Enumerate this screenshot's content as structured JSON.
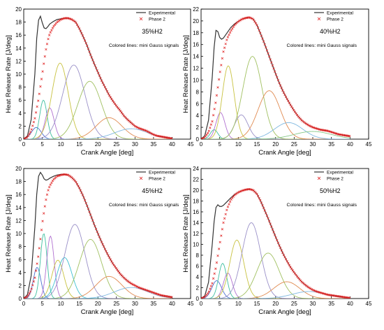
{
  "chart_data": [
    {
      "type": "line",
      "panel_label": "35%H2",
      "annotation": "Colored lines: mini Gauss signals",
      "xlabel": "Crank Angle [deg]",
      "ylabel": "Heat Release Rate [J/deg]",
      "xlim": [
        0,
        45
      ],
      "ylim": [
        0,
        20
      ],
      "xticks": [
        0,
        5,
        10,
        15,
        20,
        25,
        30,
        35,
        40,
        45
      ],
      "yticks": [
        0,
        2,
        4,
        6,
        8,
        10,
        12,
        14,
        16,
        18,
        20
      ],
      "legend": {
        "position": "top-right",
        "entries": [
          "Experimental",
          "Phase 2"
        ]
      },
      "experimental": {
        "name": "Experimental",
        "x": [
          0,
          1,
          2,
          3,
          3.5,
          4,
          4.5,
          5,
          5.5,
          6,
          6.5,
          7,
          8,
          9,
          10,
          11,
          12,
          13,
          14,
          15,
          16,
          17,
          18,
          19,
          20,
          21,
          22,
          23,
          24,
          25,
          26,
          27,
          28,
          29,
          30,
          31,
          32,
          33,
          34,
          35,
          36,
          37,
          38,
          39,
          40
        ],
        "y": [
          0,
          0.5,
          3,
          10,
          15.5,
          18.3,
          18.9,
          17.9,
          17.1,
          17.0,
          17.3,
          17.7,
          18.1,
          18.4,
          18.5,
          18.6,
          18.6,
          18.4,
          18.0,
          17.0,
          15.8,
          14.5,
          13.0,
          11.6,
          10.3,
          9.0,
          7.9,
          6.8,
          5.9,
          5.1,
          4.4,
          3.6,
          3.0,
          2.5,
          2.0,
          1.7,
          1.5,
          1.3,
          1.0,
          0.7,
          0.5,
          0.4,
          0.3,
          0.2,
          0.1
        ]
      },
      "phase2": {
        "name": "Phase 2",
        "x": [
          0,
          1,
          2,
          3,
          4,
          5,
          5.5,
          6,
          6.5,
          7,
          8,
          9,
          10,
          11,
          12,
          13,
          14,
          15,
          16,
          17,
          18,
          19,
          20,
          21,
          22,
          23,
          24,
          25,
          26,
          27,
          28,
          29,
          30,
          31,
          32,
          33,
          34,
          35,
          36,
          37,
          38,
          39,
          40
        ],
        "y": [
          0,
          0.3,
          1.3,
          3.2,
          6.2,
          10.0,
          12.0,
          13.8,
          15.2,
          16.2,
          17.3,
          18.0,
          18.4,
          18.6,
          18.6,
          18.4,
          18.0,
          17.0,
          15.8,
          14.5,
          13.0,
          11.6,
          10.3,
          9.0,
          7.9,
          6.8,
          5.9,
          5.1,
          4.4,
          3.6,
          3.0,
          2.5,
          2.0,
          1.7,
          1.5,
          1.3,
          1.0,
          0.7,
          0.5,
          0.4,
          0.3,
          0.2,
          0.1
        ]
      },
      "gaussians": [
        {
          "mu": 3.4,
          "sigma": 1.3,
          "amp": 1.8,
          "color": "#4a6fd0"
        },
        {
          "mu": 5.3,
          "sigma": 1.0,
          "amp": 6.0,
          "color": "#3fbfa0"
        },
        {
          "mu": 7.0,
          "sigma": 1.2,
          "amp": 4.8,
          "color": "#b070d0"
        },
        {
          "mu": 9.8,
          "sigma": 2.2,
          "amp": 11.7,
          "color": "#c8c240"
        },
        {
          "mu": 13.5,
          "sigma": 3.0,
          "amp": 11.4,
          "color": "#9a90c8"
        },
        {
          "mu": 17.8,
          "sigma": 3.2,
          "amp": 8.9,
          "color": "#a0c060"
        },
        {
          "mu": 23.0,
          "sigma": 3.5,
          "amp": 3.3,
          "color": "#e08a50"
        },
        {
          "mu": 29.0,
          "sigma": 4.5,
          "amp": 1.6,
          "color": "#7fb8e0"
        }
      ]
    },
    {
      "type": "line",
      "panel_label": "40%H2",
      "annotation": "Colored lines: mini Gauss signals",
      "xlabel": "Crank Angle [deg]",
      "ylabel": "Heat Release Rate [J/deg]",
      "xlim": [
        0,
        45
      ],
      "ylim": [
        0,
        22
      ],
      "xticks": [
        0,
        5,
        10,
        15,
        20,
        25,
        30,
        35,
        40,
        45
      ],
      "yticks": [
        0,
        2,
        4,
        6,
        8,
        10,
        12,
        14,
        16,
        18,
        20,
        22
      ],
      "legend": {
        "position": "top-right",
        "entries": [
          "Experimental",
          "Phase 2"
        ]
      },
      "experimental": {
        "name": "Experimental",
        "x": [
          0,
          1,
          2,
          3,
          3.5,
          4,
          4.5,
          5,
          5.5,
          6,
          7,
          8,
          9,
          10,
          11,
          12,
          13,
          14,
          15,
          16,
          17,
          18,
          19,
          20,
          21,
          22,
          23,
          24,
          25,
          26,
          27,
          28,
          29,
          30,
          31,
          32,
          33,
          34,
          35,
          36,
          37,
          38,
          39,
          40
        ],
        "y": [
          0,
          0.6,
          3.2,
          10.5,
          15.5,
          18.4,
          18.2,
          17.2,
          16.9,
          17.1,
          18.0,
          18.9,
          19.5,
          19.9,
          20.3,
          20.5,
          20.6,
          20.3,
          19.3,
          17.8,
          16.2,
          14.5,
          12.8,
          11.1,
          9.5,
          8.1,
          6.9,
          5.8,
          4.8,
          3.9,
          3.2,
          2.7,
          2.3,
          2.0,
          1.8,
          1.6,
          1.5,
          1.4,
          1.2,
          1.0,
          0.8,
          0.7,
          0.6,
          0.5
        ]
      },
      "phase2": {
        "name": "Phase 2",
        "x": [
          0,
          1,
          2,
          3,
          4,
          5,
          6,
          7,
          8,
          9,
          10,
          11,
          12,
          13,
          14,
          15,
          16,
          17,
          18,
          19,
          20,
          21,
          22,
          23,
          24,
          25,
          26,
          27,
          28,
          29,
          30,
          31,
          32,
          33,
          34,
          35,
          36,
          37,
          38,
          39,
          40
        ],
        "y": [
          0,
          0.3,
          1.2,
          3.0,
          6.5,
          11.0,
          14.8,
          17.0,
          18.3,
          19.3,
          19.9,
          20.3,
          20.5,
          20.6,
          20.3,
          19.3,
          17.8,
          16.2,
          14.5,
          12.8,
          11.1,
          9.5,
          8.1,
          6.9,
          5.8,
          4.8,
          3.9,
          3.2,
          2.7,
          2.3,
          2.0,
          1.8,
          1.6,
          1.5,
          1.4,
          1.2,
          1.0,
          0.8,
          0.7,
          0.6,
          0.5
        ]
      },
      "gaussians": [
        {
          "mu": 3.5,
          "sigma": 1.0,
          "amp": 1.6,
          "color": "#3fbfa0"
        },
        {
          "mu": 5.2,
          "sigma": 1.2,
          "amp": 4.5,
          "color": "#b070d0"
        },
        {
          "mu": 7.3,
          "sigma": 1.6,
          "amp": 12.4,
          "color": "#c8c240"
        },
        {
          "mu": 10.8,
          "sigma": 1.8,
          "amp": 4.1,
          "color": "#9a90c8"
        },
        {
          "mu": 13.8,
          "sigma": 2.6,
          "amp": 14.0,
          "color": "#a0c060"
        },
        {
          "mu": 18.3,
          "sigma": 3.0,
          "amp": 8.2,
          "color": "#e08a50"
        },
        {
          "mu": 23.5,
          "sigma": 3.8,
          "amp": 2.8,
          "color": "#7fb8e0"
        },
        {
          "mu": 30.0,
          "sigma": 5.0,
          "amp": 1.3,
          "color": "#88c888"
        }
      ]
    },
    {
      "type": "line",
      "panel_label": "45%H2",
      "annotation": "Colored lines: mini Gauss signals",
      "xlabel": "Crank Angle [deg]",
      "ylabel": "Heat Release Rate [J/deg]",
      "xlim": [
        0,
        45
      ],
      "ylim": [
        0,
        20
      ],
      "xticks": [
        0,
        5,
        10,
        15,
        20,
        25,
        30,
        35,
        40,
        45
      ],
      "yticks": [
        0,
        2,
        4,
        6,
        8,
        10,
        12,
        14,
        16,
        18,
        20
      ],
      "legend": {
        "position": "top-right",
        "entries": [
          "Experimental",
          "Phase 2"
        ]
      },
      "experimental": {
        "name": "Experimental",
        "x": [
          0,
          1,
          2,
          3,
          3.5,
          4,
          4.5,
          5,
          5.5,
          6,
          6.5,
          7,
          8,
          9,
          10,
          11,
          12,
          13,
          14,
          15,
          16,
          17,
          18,
          19,
          20,
          21,
          22,
          23,
          24,
          25,
          26,
          27,
          28,
          29,
          30,
          31,
          32,
          33,
          34,
          35,
          36,
          37,
          38,
          39,
          40
        ],
        "y": [
          0,
          0.6,
          3.5,
          11.0,
          16.0,
          18.8,
          19.4,
          19.0,
          18.4,
          18.2,
          18.3,
          18.5,
          18.8,
          19.0,
          19.1,
          19.1,
          19.0,
          18.6,
          18.0,
          17.0,
          15.8,
          14.4,
          12.9,
          11.4,
          10.0,
          8.7,
          7.5,
          6.4,
          5.4,
          4.6,
          3.8,
          3.2,
          2.7,
          2.3,
          2.0,
          1.7,
          1.5,
          1.3,
          1.1,
          0.9,
          0.7,
          0.5,
          0.4,
          0.3,
          0.2
        ]
      },
      "phase2": {
        "name": "Phase 2",
        "x": [
          0,
          1,
          2,
          3,
          4,
          5,
          5.5,
          6,
          6.5,
          7,
          8,
          9,
          10,
          11,
          12,
          13,
          14,
          15,
          16,
          17,
          18,
          19,
          20,
          21,
          22,
          23,
          24,
          25,
          26,
          27,
          28,
          29,
          30,
          31,
          32,
          33,
          34,
          35,
          36,
          37,
          38,
          39,
          40
        ],
        "y": [
          0,
          0.3,
          1.3,
          3.2,
          6.8,
          11.5,
          13.5,
          15.2,
          16.5,
          17.3,
          18.3,
          18.8,
          19.0,
          19.1,
          19.0,
          18.6,
          18.0,
          17.0,
          15.8,
          14.4,
          12.9,
          11.4,
          10.0,
          8.7,
          7.5,
          6.4,
          5.4,
          4.6,
          3.8,
          3.2,
          2.7,
          2.3,
          2.0,
          1.7,
          1.5,
          1.3,
          1.1,
          0.9,
          0.7,
          0.5,
          0.4,
          0.3,
          0.2
        ]
      },
      "gaussians": [
        {
          "mu": 3.6,
          "sigma": 1.0,
          "amp": 4.8,
          "color": "#4a6fd0"
        },
        {
          "mu": 5.4,
          "sigma": 0.9,
          "amp": 10.0,
          "color": "#3fbfa0"
        },
        {
          "mu": 7.2,
          "sigma": 1.0,
          "amp": 9.6,
          "color": "#b070d0"
        },
        {
          "mu": 9.2,
          "sigma": 1.6,
          "amp": 5.9,
          "color": "#c8c240"
        },
        {
          "mu": 11.0,
          "sigma": 2.0,
          "amp": 6.3,
          "color": "#40c0d0"
        },
        {
          "mu": 13.8,
          "sigma": 2.7,
          "amp": 11.4,
          "color": "#9a90c8"
        },
        {
          "mu": 18.0,
          "sigma": 3.0,
          "amp": 9.1,
          "color": "#a0c060"
        },
        {
          "mu": 23.0,
          "sigma": 3.5,
          "amp": 3.4,
          "color": "#e08a50"
        },
        {
          "mu": 29.0,
          "sigma": 4.5,
          "amp": 1.7,
          "color": "#7fb8e0"
        }
      ]
    },
    {
      "type": "line",
      "panel_label": "50%H2",
      "annotation": "Colored lines: mini Gauss signals",
      "xlabel": "Crank Angle [deg]",
      "ylabel": "Heat Release Rate [J/deg]",
      "xlim": [
        0,
        45
      ],
      "ylim": [
        0,
        24
      ],
      "xticks": [
        0,
        5,
        10,
        15,
        20,
        25,
        30,
        35,
        40,
        45
      ],
      "yticks": [
        0,
        2,
        4,
        6,
        8,
        10,
        12,
        14,
        16,
        18,
        20,
        22,
        24
      ],
      "legend": {
        "position": "top-right",
        "entries": [
          "Experimental",
          "Phase 2"
        ]
      },
      "experimental": {
        "name": "Experimental",
        "x": [
          0,
          1,
          2,
          3,
          3.5,
          4,
          4.5,
          5,
          5.5,
          6,
          7,
          8,
          9,
          10,
          11,
          12,
          13,
          14,
          15,
          16,
          17,
          18,
          19,
          20,
          21,
          22,
          23,
          24,
          25,
          26,
          27,
          28,
          29,
          30,
          31,
          32,
          33,
          34,
          35,
          36,
          37,
          38,
          39,
          40
        ],
        "y": [
          0,
          0.5,
          3.0,
          10.0,
          14.2,
          16.8,
          17.3,
          17.0,
          17.0,
          17.2,
          17.9,
          18.6,
          19.2,
          19.6,
          19.9,
          20.1,
          20.2,
          20.0,
          19.3,
          18.0,
          16.4,
          14.8,
          13.1,
          11.4,
          9.8,
          8.3,
          7.0,
          5.8,
          4.8,
          3.9,
          3.1,
          2.5,
          2.0,
          1.6,
          1.3,
          1.1,
          0.9,
          0.7,
          0.6,
          0.5,
          0.4,
          0.3,
          0.2,
          0.1
        ]
      },
      "phase2": {
        "name": "Phase 2",
        "x": [
          0,
          1,
          2,
          3,
          4,
          5,
          6,
          7,
          8,
          9,
          10,
          11,
          12,
          13,
          14,
          15,
          16,
          17,
          18,
          19,
          20,
          21,
          22,
          23,
          24,
          25,
          26,
          27,
          28,
          29,
          30,
          31,
          32,
          33,
          34,
          35,
          36,
          37,
          38,
          39,
          40
        ],
        "y": [
          0,
          0.3,
          1.1,
          2.8,
          5.8,
          10.0,
          14.0,
          16.6,
          18.2,
          19.1,
          19.6,
          19.9,
          20.1,
          20.2,
          20.0,
          19.3,
          18.0,
          16.4,
          14.8,
          13.1,
          11.4,
          9.8,
          8.3,
          7.0,
          5.8,
          4.8,
          3.9,
          3.1,
          2.5,
          2.0,
          1.6,
          1.3,
          1.1,
          0.9,
          0.7,
          0.6,
          0.5,
          0.4,
          0.3,
          0.2,
          0.1
        ]
      },
      "gaussians": [
        {
          "mu": 4.2,
          "sigma": 1.3,
          "amp": 3.3,
          "color": "#4a6fd0"
        },
        {
          "mu": 5.8,
          "sigma": 1.1,
          "amp": 6.5,
          "color": "#3fbfa0"
        },
        {
          "mu": 7.2,
          "sigma": 1.2,
          "amp": 4.7,
          "color": "#b070d0"
        },
        {
          "mu": 9.6,
          "sigma": 1.9,
          "amp": 10.8,
          "color": "#c8c240"
        },
        {
          "mu": 13.5,
          "sigma": 2.5,
          "amp": 14.0,
          "color": "#9a90c8"
        },
        {
          "mu": 18.0,
          "sigma": 3.0,
          "amp": 8.4,
          "color": "#a0c060"
        },
        {
          "mu": 23.0,
          "sigma": 3.5,
          "amp": 3.1,
          "color": "#e08a50"
        },
        {
          "mu": 29.0,
          "sigma": 4.5,
          "amp": 1.3,
          "color": "#7fb8e0"
        }
      ]
    }
  ]
}
